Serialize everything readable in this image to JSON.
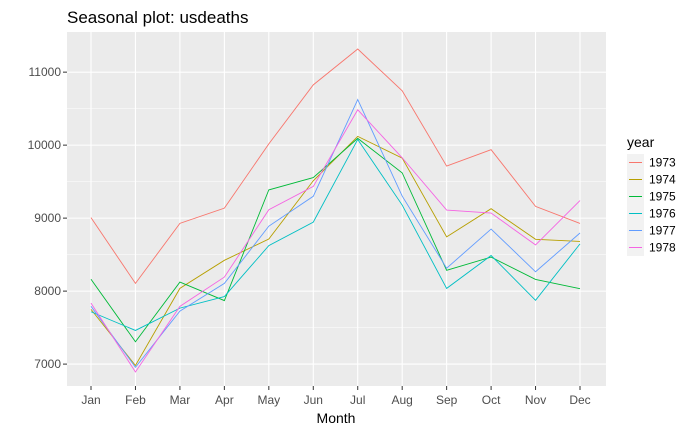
{
  "chart_data": {
    "type": "line",
    "title": "Seasonal plot: usdeaths",
    "xlabel": "Month",
    "ylabel": "",
    "categories": [
      "Jan",
      "Feb",
      "Mar",
      "Apr",
      "May",
      "Jun",
      "Jul",
      "Aug",
      "Sep",
      "Oct",
      "Nov",
      "Dec"
    ],
    "ylim": [
      6700,
      11550
    ],
    "yticks": [
      7000,
      8000,
      9000,
      10000,
      11000
    ],
    "ytick_labels": [
      "7000",
      "8000",
      "9000",
      "10000",
      "11000"
    ],
    "grid": true,
    "legend_title": "year",
    "legend_position": "right",
    "series": [
      {
        "name": "1973",
        "color": "#F8766D",
        "values": [
          9007,
          8106,
          8928,
          9137,
          10017,
          10826,
          11317,
          10744,
          9713,
          9938,
          9161,
          8927
        ]
      },
      {
        "name": "1974",
        "color": "#B79F00",
        "values": [
          7750,
          6981,
          8038,
          8422,
          8714,
          9512,
          10120,
          9823,
          8743,
          9129,
          8710,
          8680
        ]
      },
      {
        "name": "1975",
        "color": "#00BA38",
        "values": [
          8162,
          7306,
          8124,
          7870,
          9387,
          9556,
          10093,
          9620,
          8285,
          8466,
          8160,
          8034
        ]
      },
      {
        "name": "1976",
        "color": "#00BFC4",
        "values": [
          7717,
          7461,
          7767,
          7925,
          8623,
          8945,
          10078,
          9179,
          8037,
          8488,
          7874,
          8647
        ]
      },
      {
        "name": "1977",
        "color": "#619CFF",
        "values": [
          7792,
          6957,
          7726,
          8106,
          8890,
          9299,
          10625,
          9302,
          8314,
          8850,
          8265,
          8796
        ]
      },
      {
        "name": "1978",
        "color": "#F564E3",
        "values": [
          7836,
          6892,
          7791,
          8192,
          9115,
          9434,
          10484,
          9827,
          9110,
          9070,
          8633,
          9240
        ]
      }
    ]
  },
  "colors": {
    "panel_background": "#EBEBEB",
    "grid_line": "#FFFFFF"
  }
}
